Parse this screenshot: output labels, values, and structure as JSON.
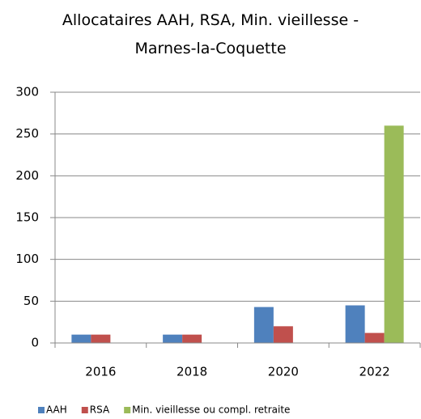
{
  "chart_data": {
    "type": "bar",
    "title": "Allocataires AAH, RSA, Min. vieillesse - Marnes-la-Coquette",
    "categories": [
      "2016",
      "2018",
      "2020",
      "2022"
    ],
    "series": [
      {
        "name": "AAH",
        "color": "#4f81bd",
        "values": [
          10,
          10,
          43,
          45
        ]
      },
      {
        "name": "RSA",
        "color": "#c0504d",
        "values": [
          10,
          10,
          20,
          12
        ]
      },
      {
        "name": "Min. vieillesse ou compl. retraite",
        "color": "#9bbb59",
        "values": [
          0,
          0,
          0,
          260
        ]
      }
    ],
    "ylim": [
      0,
      300
    ],
    "yticks": [
      0,
      50,
      100,
      150,
      200,
      250,
      300
    ],
    "grid": true,
    "legend": "bottom"
  }
}
